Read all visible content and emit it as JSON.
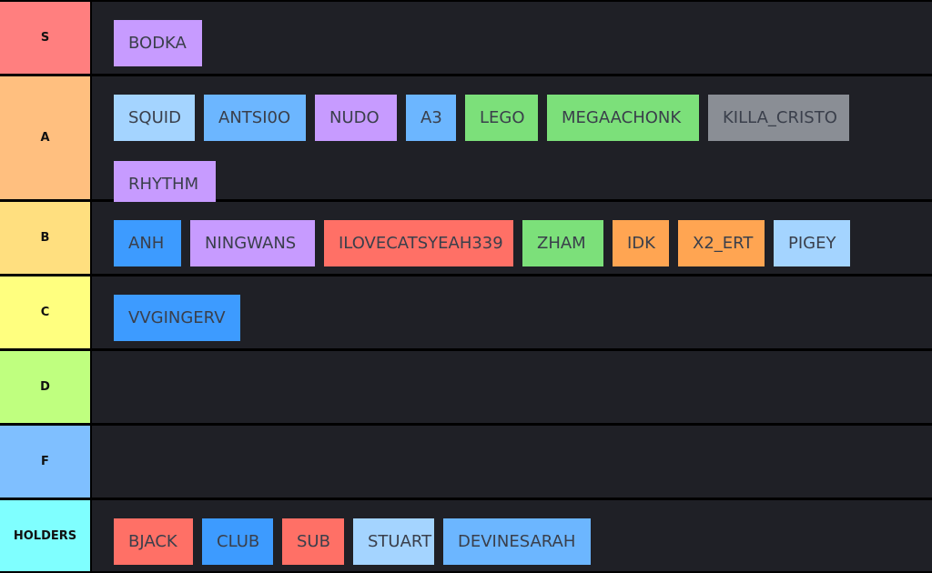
{
  "tiers": [
    {
      "label": "S",
      "color": "#ff7f7f",
      "rows": [
        [
          {
            "name": "BODKA",
            "color": "#c79bff"
          }
        ]
      ]
    },
    {
      "label": "A",
      "color": "#ffbf7f",
      "rows": [
        [
          {
            "name": "SQUID",
            "color": "#a4d4ff"
          },
          {
            "name": "ANTSI0O",
            "color": "#6cb6ff"
          },
          {
            "name": "NUDO",
            "color": "#c79bff"
          },
          {
            "name": "A3",
            "color": "#6cb6ff"
          },
          {
            "name": "LEGO",
            "color": "#7ce07a"
          },
          {
            "name": "MEGAACHONK",
            "color": "#7ce07a"
          },
          {
            "name": "KILLA_CRISTO",
            "color": "#8a8e95"
          }
        ],
        [
          {
            "name": "RHYTHM",
            "color": "#c79bff"
          }
        ]
      ]
    },
    {
      "label": "B",
      "color": "#ffdf7f",
      "rows": [
        [
          {
            "name": "ANH",
            "color": "#3d9bff"
          },
          {
            "name": "NINGWANS",
            "color": "#c79bff"
          },
          {
            "name": "ILOVECATSYEAH339",
            "color": "#ff7066"
          },
          {
            "name": "ZHAM",
            "color": "#7ce07a"
          },
          {
            "name": "IDK",
            "color": "#ffa552"
          },
          {
            "name": "X2_ERT",
            "color": "#ffa552"
          },
          {
            "name": "PIGEY",
            "color": "#a4d4ff"
          }
        ]
      ]
    },
    {
      "label": "C",
      "color": "#ffff7f",
      "rows": [
        [
          {
            "name": "VVGINGERV",
            "color": "#3d9bff"
          }
        ]
      ]
    },
    {
      "label": "D",
      "color": "#bfff7f",
      "rows": []
    },
    {
      "label": "F",
      "color": "#7fbfff",
      "rows": []
    },
    {
      "label": "HOLDERS",
      "color": "#7fffff",
      "rows": [
        [
          {
            "name": "BJACK",
            "color": "#ff7066"
          },
          {
            "name": "CLUB",
            "color": "#3d9bff"
          },
          {
            "name": "SUB",
            "color": "#ff7066"
          },
          {
            "name": "STUART",
            "color": "#a4d4ff"
          },
          {
            "name": "DEVINESARAH",
            "color": "#6cb6ff"
          }
        ]
      ]
    }
  ]
}
